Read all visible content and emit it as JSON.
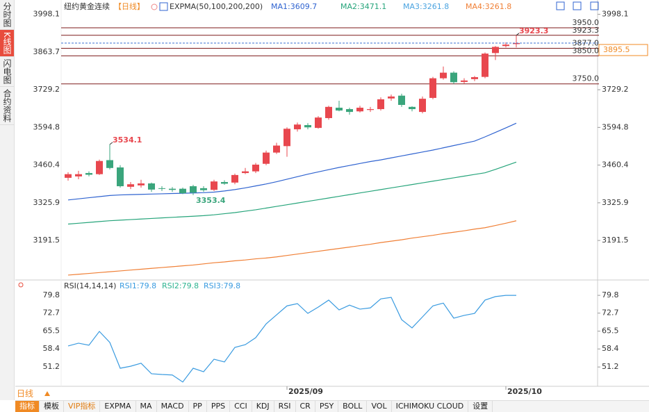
{
  "sidebar": [
    "分时图",
    "K线图",
    "闪电图",
    "合约资料"
  ],
  "period_selector": "日线",
  "toolbar": [
    "指标",
    "模板",
    "VIP指标",
    "EXPMA",
    "MA",
    "MACD",
    "PP",
    "PPS",
    "CCI",
    "KDJ",
    "RSI",
    "CR",
    "PSY",
    "BOLL",
    "VOL",
    "ICHIMOKU CLOUD",
    "设置"
  ],
  "chart_data": [
    {
      "type": "candlestick",
      "title": "纽约黄金连续",
      "period": "【日线】",
      "indicator": "EXPMA(50,100,200,200)",
      "categories": [
        null,
        null,
        null,
        null,
        null,
        null,
        null,
        null,
        null,
        null,
        null,
        null,
        null,
        null,
        null,
        null,
        null,
        null,
        null,
        null,
        null,
        "2025/09",
        null,
        null,
        null,
        null,
        null,
        null,
        null,
        null,
        null,
        null,
        null,
        null,
        null,
        null,
        null,
        null,
        null,
        null,
        null,
        null,
        "2025/10",
        null
      ],
      "open": [
        3415,
        3420,
        3432,
        3428,
        3478,
        3452,
        3383,
        3388,
        3395,
        3378,
        3376,
        3376,
        3385,
        3378,
        3372,
        3400,
        3398,
        3432,
        3438,
        3465,
        3505,
        3528,
        3588,
        3603,
        3593,
        3628,
        3665,
        3660,
        3652,
        3657,
        3660,
        3698,
        3708,
        3668,
        3650,
        3700,
        3770,
        3790,
        3757,
        3767,
        3775,
        3860,
        3885,
        3892
      ],
      "high": [
        3435,
        3440,
        3438,
        3480,
        3534.1,
        3460,
        3400,
        3408,
        3398,
        3385,
        3382,
        3380,
        3390,
        3385,
        3408,
        3406,
        3430,
        3450,
        3468,
        3512,
        3540,
        3595,
        3612,
        3610,
        3635,
        3672,
        3690,
        3665,
        3672,
        3668,
        3702,
        3712,
        3715,
        3670,
        3705,
        3775,
        3812,
        3795,
        3770,
        3778,
        3862,
        3885,
        3898,
        3923.3
      ],
      "low": [
        3405,
        3410,
        3420,
        3425,
        3445,
        3380,
        3375,
        3380,
        3365,
        3368,
        3365,
        3357,
        3353.4,
        3365,
        3368,
        3390,
        3392,
        3428,
        3432,
        3460,
        3500,
        3490,
        3580,
        3588,
        3590,
        3622,
        3652,
        3640,
        3648,
        3650,
        3655,
        3690,
        3668,
        3652,
        3645,
        3695,
        3765,
        3750,
        3750,
        3760,
        3770,
        3835,
        3880,
        3880
      ],
      "close": [
        3428,
        3428,
        3426,
        3475,
        3450,
        3385,
        3392,
        3395,
        3373,
        3376,
        3372,
        3360,
        3362,
        3371,
        3402,
        3394,
        3425,
        3438,
        3462,
        3505,
        3530,
        3590,
        3605,
        3595,
        3630,
        3668,
        3655,
        3650,
        3665,
        3660,
        3695,
        3705,
        3675,
        3660,
        3697,
        3770,
        3790,
        3756,
        3762,
        3774,
        3858,
        3882,
        3890,
        3895.5
      ],
      "high_labels": [
        null,
        null,
        null,
        null,
        "3534.1",
        null,
        null,
        null,
        null,
        null,
        null,
        null,
        null,
        null,
        null,
        null,
        null,
        null,
        null,
        null,
        null,
        null,
        null,
        null,
        null,
        null,
        null,
        null,
        null,
        null,
        null,
        null,
        null,
        null,
        null,
        null,
        null,
        null,
        null,
        null,
        null,
        null,
        null,
        "3923.3"
      ],
      "low_labels": [
        null,
        null,
        null,
        null,
        null,
        null,
        null,
        null,
        null,
        null,
        null,
        null,
        "3353.4",
        null,
        null,
        null,
        null,
        null,
        null,
        null,
        null,
        null,
        null,
        null,
        null,
        null,
        null,
        null,
        null,
        null,
        null,
        null,
        null,
        null,
        null,
        null,
        null,
        null,
        null,
        null,
        null,
        null,
        null,
        null
      ],
      "up_color": "#e8474e",
      "down_color": "#3aa57c",
      "series": [
        {
          "name": "MA1:3609.7",
          "color": "#2f63d0",
          "values": [
            3336,
            3340,
            3344,
            3348,
            3352,
            3354,
            3355,
            3356,
            3357,
            3358,
            3359,
            3360,
            3361,
            3362,
            3364,
            3368,
            3373,
            3379,
            3386,
            3393,
            3401,
            3410,
            3419,
            3428,
            3436,
            3444,
            3452,
            3459,
            3466,
            3473,
            3479,
            3486,
            3493,
            3500,
            3507,
            3514,
            3522,
            3530,
            3538,
            3546,
            3561,
            3577,
            3593,
            3609.7
          ]
        },
        {
          "name": "MA2:3471.1",
          "color": "#25a47a",
          "values": [
            3250,
            3253,
            3256,
            3259,
            3262,
            3264,
            3266,
            3268,
            3270,
            3272,
            3274,
            3276,
            3278,
            3280,
            3283,
            3287,
            3291,
            3296,
            3301,
            3307,
            3313,
            3319,
            3325,
            3331,
            3337,
            3343,
            3349,
            3355,
            3361,
            3367,
            3373,
            3379,
            3385,
            3391,
            3397,
            3403,
            3409,
            3415,
            3421,
            3427,
            3433,
            3445,
            3458,
            3471.1
          ]
        },
        {
          "name": "MA4:3261.8",
          "color": "#f07f35",
          "values": [
            3068,
            3071,
            3074,
            3077,
            3080,
            3083,
            3086,
            3089,
            3092,
            3095,
            3098,
            3101,
            3104,
            3108,
            3112,
            3115,
            3119,
            3122,
            3126,
            3129,
            3133,
            3138,
            3143,
            3148,
            3153,
            3158,
            3163,
            3168,
            3173,
            3178,
            3184,
            3189,
            3194,
            3200,
            3205,
            3210,
            3216,
            3221,
            3226,
            3232,
            3237,
            3245,
            3253,
            3261.8
          ]
        }
      ],
      "legend_only": [
        {
          "name": "MA3:3261.8",
          "color": "#4aa3e0"
        }
      ],
      "legend_order": [
        "MA1:3609.7",
        "MA2:3471.1",
        "MA3:3261.8",
        "MA4:3261.8"
      ],
      "ylim": [
        3058,
        4012
      ],
      "yticks": [
        3998.1,
        3863.7,
        3729.2,
        3594.8,
        3460.4,
        3325.9,
        3191.5
      ],
      "levels": [
        {
          "value": 3950,
          "label": "3950.0",
          "color": "#7d1a1a"
        },
        {
          "value": 3923.3,
          "label": "3923.3",
          "color": "#7d1a1a"
        },
        {
          "value": 3877,
          "label": "3877.0",
          "color": "#7d1a1a"
        },
        {
          "value": 3850,
          "label": "3850.0",
          "color": "#7d1a1a"
        },
        {
          "value": 3750,
          "label": "3750.0",
          "color": "#7d1a1a"
        }
      ],
      "last_price_color": "#f08a24"
    },
    {
      "type": "line",
      "title": "RSI(14,14,14)",
      "series": [
        {
          "name": "RSI1:79.8",
          "color": "#3a9be0",
          "values": [
            59.6,
            60.7,
            59.9,
            65.4,
            61,
            50.7,
            51.5,
            52.7,
            48.5,
            48.2,
            48,
            45.2,
            50.7,
            49.3,
            54.3,
            53.2,
            59,
            60.1,
            62.9,
            68.4,
            72,
            75.6,
            76.5,
            72.6,
            75.1,
            77.9,
            74,
            75.9,
            74.3,
            74.8,
            78.4,
            79,
            70.1,
            66.8,
            71.2,
            75.6,
            76.7,
            70.7,
            71.8,
            72.6,
            77.9,
            79.3,
            79.8,
            79.8
          ]
        }
      ],
      "legend_only": [
        {
          "name": "RSI2:79.8",
          "color": "#2db390"
        },
        {
          "name": "RSI3:79.8",
          "color": "#3a9be0"
        }
      ],
      "ylim": [
        44.6,
        82.6
      ],
      "yticks": [
        79.8,
        72.7,
        65.5,
        58.4,
        51.2
      ]
    }
  ]
}
